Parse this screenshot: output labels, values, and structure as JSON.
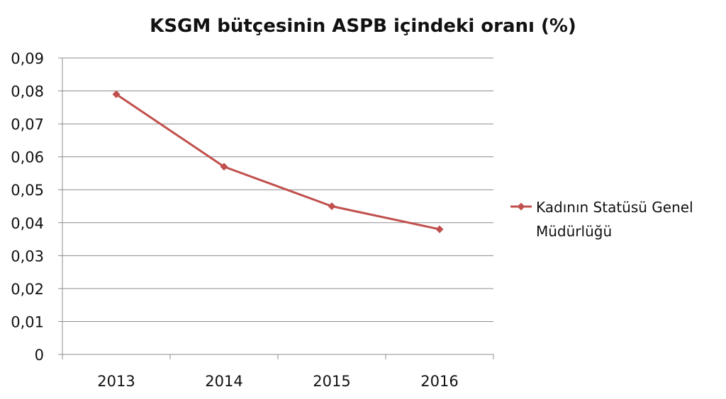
{
  "chart_data": {
    "type": "line",
    "title": "KSGM bütçesinin ASPB içindeki oranı (%)",
    "xlabel": "",
    "ylabel": "",
    "categories": [
      "2013",
      "2014",
      "2015",
      "2016"
    ],
    "series": [
      {
        "name": "Kadının Statüsü Genel Müdürlüğü",
        "legend_lines": [
          "Kadının Statüsü Genel",
          "Müdürlüğü"
        ],
        "values": [
          0.079,
          0.057,
          0.045,
          0.038
        ],
        "color": "#c0504d"
      }
    ],
    "ylim": [
      0,
      0.09
    ],
    "yticks": [
      0,
      0.01,
      0.02,
      0.03,
      0.04,
      0.05,
      0.06,
      0.07,
      0.08,
      0.09
    ],
    "ytick_labels": [
      "0",
      "0,01",
      "0,02",
      "0,03",
      "0,04",
      "0,05",
      "0,06",
      "0,07",
      "0,08",
      "0,09"
    ],
    "grid": true,
    "legend_position": "right",
    "colors": {
      "gridline": "#8c8c8c",
      "axis": "#8c8c8c"
    }
  }
}
